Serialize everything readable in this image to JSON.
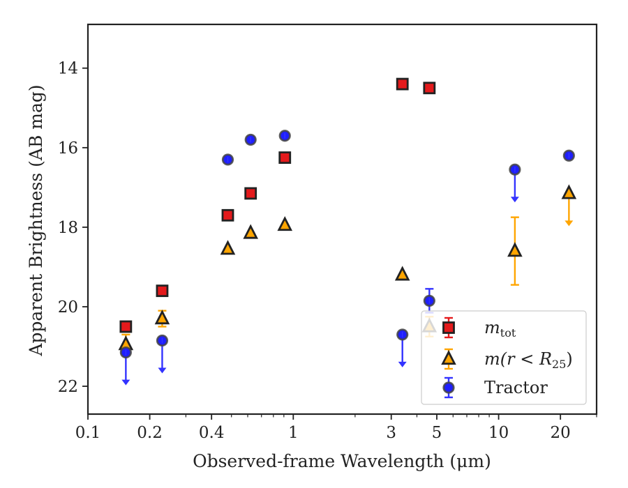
{
  "chart_data": {
    "type": "scatter",
    "title": "",
    "xlabel": "Observed-frame Wavelength (μm)",
    "ylabel": "Apparent Brightness (AB mag)",
    "xscale": "log",
    "xlim": [
      0.1,
      30
    ],
    "ylim": [
      22.7,
      12.9
    ],
    "y_inverted": true,
    "grid": false,
    "legend_location": "lower right",
    "x_ticks": [
      {
        "value": 0.1,
        "label": "0.1"
      },
      {
        "value": 0.2,
        "label": "0.2"
      },
      {
        "value": 0.4,
        "label": "0.4"
      },
      {
        "value": 1,
        "label": "1"
      },
      {
        "value": 3,
        "label": "3"
      },
      {
        "value": 5,
        "label": "5"
      },
      {
        "value": 10,
        "label": "10"
      },
      {
        "value": 20,
        "label": "20"
      }
    ],
    "y_ticks": [
      {
        "value": 14,
        "label": "14"
      },
      {
        "value": 16,
        "label": "16"
      },
      {
        "value": 18,
        "label": "18"
      },
      {
        "value": 20,
        "label": "20"
      },
      {
        "value": 22,
        "label": "22"
      }
    ],
    "series": [
      {
        "name": "m_tot",
        "label_main": "m",
        "label_sub": "tot",
        "marker": "square",
        "color": "#e41a1c",
        "edge_color": "#222222",
        "points": [
          {
            "x": 0.153,
            "y": 20.5
          },
          {
            "x": 0.23,
            "y": 19.6
          },
          {
            "x": 0.48,
            "y": 17.7
          },
          {
            "x": 0.62,
            "y": 17.15
          },
          {
            "x": 0.91,
            "y": 16.25
          },
          {
            "x": 3.4,
            "y": 14.4
          },
          {
            "x": 4.6,
            "y": 14.5
          }
        ]
      },
      {
        "name": "m(r<R25)",
        "label_main": "m(r < R",
        "label_sub": "25",
        "label_end": ")",
        "marker": "triangle",
        "color": "#ffa500",
        "edge_color": "#222222",
        "points": [
          {
            "x": 0.153,
            "y": 20.95,
            "err": 0.25
          },
          {
            "x": 0.23,
            "y": 20.3,
            "err": 0.2
          },
          {
            "x": 0.48,
            "y": 18.55
          },
          {
            "x": 0.62,
            "y": 18.15
          },
          {
            "x": 0.91,
            "y": 17.95
          },
          {
            "x": 3.4,
            "y": 19.2
          },
          {
            "x": 4.6,
            "y": 20.5,
            "err": 0.25
          },
          {
            "x": 12.0,
            "y": 18.6,
            "err": 0.85
          },
          {
            "x": 22.0,
            "y": 17.15,
            "upper_limit": true
          }
        ]
      },
      {
        "name": "Tractor",
        "label_main": "Tractor",
        "marker": "circle",
        "color": "#1f1fff",
        "edge_color": "#444444",
        "points": [
          {
            "x": 0.153,
            "y": 21.15,
            "upper_limit": true
          },
          {
            "x": 0.23,
            "y": 20.85,
            "upper_limit": true
          },
          {
            "x": 0.48,
            "y": 16.3
          },
          {
            "x": 0.62,
            "y": 15.8
          },
          {
            "x": 0.91,
            "y": 15.7
          },
          {
            "x": 3.4,
            "y": 20.7,
            "upper_limit": true
          },
          {
            "x": 4.6,
            "y": 19.85,
            "err": 0.3
          },
          {
            "x": 12.0,
            "y": 16.55,
            "upper_limit": true
          },
          {
            "x": 22.0,
            "y": 16.2
          }
        ]
      }
    ]
  }
}
